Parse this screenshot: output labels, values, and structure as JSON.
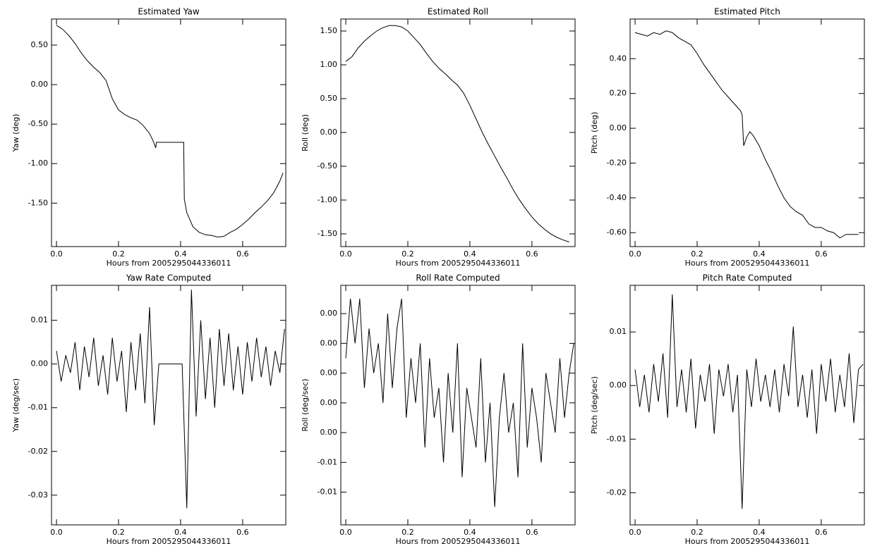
{
  "chart_data": [
    {
      "type": "line",
      "title": "Estimated Yaw",
      "xlabel": "Hours from 2005295044336011",
      "ylabel": "Yaw (deg)",
      "color": "#000000",
      "x": [
        0,
        0.02,
        0.04,
        0.06,
        0.08,
        0.1,
        0.12,
        0.14,
        0.16,
        0.18,
        0.2,
        0.22,
        0.24,
        0.26,
        0.28,
        0.3,
        0.31,
        0.32,
        0.322,
        0.41,
        0.412,
        0.42,
        0.44,
        0.46,
        0.48,
        0.5,
        0.52,
        0.54,
        0.56,
        0.58,
        0.6,
        0.62,
        0.64,
        0.66,
        0.68,
        0.7,
        0.72,
        0.73
      ],
      "values": [
        0.75,
        0.7,
        0.62,
        0.52,
        0.4,
        0.3,
        0.22,
        0.15,
        0.05,
        -0.18,
        -0.32,
        -0.38,
        -0.42,
        -0.45,
        -0.52,
        -0.62,
        -0.7,
        -0.8,
        -0.73,
        -0.73,
        -1.45,
        -1.62,
        -1.8,
        -1.87,
        -1.9,
        -1.91,
        -1.93,
        -1.92,
        -1.87,
        -1.83,
        -1.77,
        -1.7,
        -1.62,
        -1.55,
        -1.47,
        -1.37,
        -1.22,
        -1.12
      ],
      "xlim": [
        -0.016,
        0.739
      ],
      "ylim": [
        -2.05,
        0.83
      ],
      "xticks": [
        {
          "value": 0,
          "label": "0.0"
        },
        0.2,
        0.4,
        0.6
      ],
      "yticks": [
        {
          "value": 0.5,
          "label": "0.50"
        },
        {
          "value": 0,
          "label": "0.00"
        },
        {
          "value": -0.5,
          "label": "-0.50"
        },
        {
          "value": -1,
          "label": "-1.00"
        },
        {
          "value": -1.5,
          "label": "-1.50"
        }
      ]
    },
    {
      "type": "line",
      "title": "Estimated Roll",
      "xlabel": "Hours from 2005295044336011",
      "ylabel": "Roll (deg)",
      "color": "#000000",
      "x": [
        0,
        0.02,
        0.04,
        0.06,
        0.08,
        0.1,
        0.12,
        0.14,
        0.16,
        0.18,
        0.2,
        0.22,
        0.24,
        0.26,
        0.28,
        0.3,
        0.32,
        0.34,
        0.36,
        0.38,
        0.4,
        0.42,
        0.44,
        0.46,
        0.48,
        0.5,
        0.52,
        0.54,
        0.56,
        0.58,
        0.6,
        0.62,
        0.64,
        0.66,
        0.68,
        0.7,
        0.72
      ],
      "values": [
        1.05,
        1.12,
        1.25,
        1.35,
        1.43,
        1.5,
        1.55,
        1.58,
        1.58,
        1.56,
        1.5,
        1.4,
        1.3,
        1.17,
        1.05,
        0.95,
        0.87,
        0.78,
        0.7,
        0.58,
        0.4,
        0.2,
        0.0,
        -0.18,
        -0.35,
        -0.52,
        -0.68,
        -0.85,
        -1.0,
        -1.13,
        -1.25,
        -1.35,
        -1.43,
        -1.5,
        -1.55,
        -1.59,
        -1.62
      ],
      "xlim": [
        -0.016,
        0.739
      ],
      "ylim": [
        -1.688,
        1.677
      ],
      "xticks": [
        {
          "value": 0,
          "label": "0.0"
        },
        0.2,
        0.4,
        0.6
      ],
      "yticks": [
        {
          "value": 1.5,
          "label": "1.50"
        },
        {
          "value": 1,
          "label": "1.00"
        },
        {
          "value": 0.5,
          "label": "0.50"
        },
        {
          "value": 0,
          "label": "0.00"
        },
        {
          "value": -0.5,
          "label": "-0.50"
        },
        {
          "value": -1,
          "label": "-1.00"
        },
        {
          "value": -1.5,
          "label": "-1.50"
        }
      ]
    },
    {
      "type": "line",
      "title": "Estimated Pitch",
      "xlabel": "Hours from 2005295044336011",
      "ylabel": "Pitch (deg)",
      "color": "#000000",
      "x": [
        0,
        0.02,
        0.04,
        0.06,
        0.08,
        0.1,
        0.12,
        0.14,
        0.16,
        0.18,
        0.2,
        0.22,
        0.24,
        0.26,
        0.28,
        0.3,
        0.32,
        0.34,
        0.345,
        0.35,
        0.36,
        0.37,
        0.38,
        0.4,
        0.42,
        0.44,
        0.46,
        0.48,
        0.5,
        0.52,
        0.54,
        0.56,
        0.58,
        0.6,
        0.62,
        0.64,
        0.66,
        0.68,
        0.7,
        0.72
      ],
      "values": [
        0.55,
        0.54,
        0.53,
        0.55,
        0.54,
        0.56,
        0.55,
        0.52,
        0.5,
        0.48,
        0.43,
        0.37,
        0.32,
        0.27,
        0.22,
        0.18,
        0.14,
        0.1,
        0.08,
        -0.1,
        -0.05,
        -0.02,
        -0.04,
        -0.1,
        -0.18,
        -0.25,
        -0.33,
        -0.4,
        -0.45,
        -0.48,
        -0.5,
        -0.55,
        -0.57,
        -0.57,
        -0.59,
        -0.6,
        -0.63,
        -0.61,
        -0.61,
        -0.61
      ],
      "xlim": [
        -0.016,
        0.739
      ],
      "ylim": [
        -0.68,
        0.628
      ],
      "xticks": [
        {
          "value": 0,
          "label": "0.0"
        },
        0.2,
        0.4,
        0.6
      ],
      "yticks": [
        {
          "value": 0.4,
          "label": "0.40"
        },
        {
          "value": 0.2,
          "label": "0.20"
        },
        {
          "value": 0,
          "label": "0.00"
        },
        {
          "value": -0.2,
          "label": "-0.20"
        },
        {
          "value": -0.4,
          "label": "-0.40"
        },
        {
          "value": -0.6,
          "label": "-0.60"
        }
      ]
    },
    {
      "type": "line",
      "title": "Yaw Rate Computed",
      "xlabel": "Hours from 2005295044336011",
      "ylabel": "Yaw (deg/sec)",
      "color": "#000000",
      "x": [
        0,
        0.015,
        0.03,
        0.045,
        0.06,
        0.075,
        0.09,
        0.105,
        0.12,
        0.135,
        0.15,
        0.165,
        0.18,
        0.195,
        0.21,
        0.225,
        0.24,
        0.255,
        0.27,
        0.285,
        0.3,
        0.315,
        0.33,
        0.345,
        0.36,
        0.375,
        0.39,
        0.405,
        0.42,
        0.435,
        0.45,
        0.465,
        0.48,
        0.495,
        0.51,
        0.525,
        0.54,
        0.555,
        0.57,
        0.585,
        0.6,
        0.615,
        0.63,
        0.645,
        0.66,
        0.675,
        0.69,
        0.705,
        0.72,
        0.735
      ],
      "values": [
        0.003,
        -0.004,
        0.002,
        -0.002,
        0.005,
        -0.006,
        0.004,
        -0.003,
        0.006,
        -0.005,
        0.002,
        -0.007,
        0.006,
        -0.004,
        0.003,
        -0.011,
        0.005,
        -0.006,
        0.007,
        -0.009,
        0.013,
        -0.014,
        0,
        0,
        0,
        0,
        0,
        0,
        -0.033,
        0.017,
        -0.012,
        0.01,
        -0.008,
        0.006,
        -0.01,
        0.008,
        -0.005,
        0.007,
        -0.006,
        0.004,
        -0.007,
        0.005,
        -0.004,
        0.006,
        -0.003,
        0.004,
        -0.005,
        0.003,
        -0.002,
        0.008
      ],
      "xlim": [
        -0.016,
        0.739
      ],
      "ylim": [
        -0.0368,
        0.018
      ],
      "xticks": [
        {
          "value": 0,
          "label": "0.0"
        },
        0.2,
        0.4,
        0.6
      ],
      "yticks": [
        0.01,
        {
          "value": 0,
          "label": "0.00"
        },
        -0.01,
        -0.02,
        -0.03
      ]
    },
    {
      "type": "line",
      "title": "Roll Rate Computed",
      "xlabel": "Hours from 2005295044336011",
      "ylabel": "Roll (deg/sec)",
      "color": "#000000",
      "x": [
        0,
        0.015,
        0.03,
        0.045,
        0.06,
        0.075,
        0.09,
        0.105,
        0.12,
        0.135,
        0.15,
        0.165,
        0.18,
        0.195,
        0.21,
        0.225,
        0.24,
        0.255,
        0.27,
        0.285,
        0.3,
        0.315,
        0.33,
        0.345,
        0.36,
        0.375,
        0.39,
        0.405,
        0.42,
        0.435,
        0.45,
        0.465,
        0.48,
        0.495,
        0.51,
        0.525,
        0.54,
        0.555,
        0.57,
        0.585,
        0.6,
        0.615,
        0.63,
        0.645,
        0.66,
        0.675,
        0.69,
        0.705,
        0.72,
        0.735
      ],
      "values": [
        0.001,
        0.005,
        0.002,
        0.005,
        -0.001,
        0.003,
        0,
        0.002,
        -0.002,
        0.004,
        -0.001,
        0.003,
        0.005,
        -0.003,
        0.001,
        -0.002,
        0.002,
        -0.005,
        0.001,
        -0.003,
        -0.001,
        -0.006,
        0,
        -0.004,
        0.002,
        -0.007,
        -0.001,
        -0.003,
        -0.005,
        0.001,
        -0.006,
        -0.002,
        -0.009,
        -0.003,
        0,
        -0.004,
        -0.002,
        -0.007,
        0.002,
        -0.005,
        -0.001,
        -0.003,
        -0.006,
        0,
        -0.002,
        -0.004,
        0.001,
        -0.003,
        0,
        0.002
      ],
      "xlim": [
        -0.016,
        0.739
      ],
      "ylim": [
        -0.0102,
        0.0059
      ],
      "xticks": [
        {
          "value": 0,
          "label": "0.0"
        },
        0.2,
        0.4,
        0.6
      ],
      "yticks": [
        {
          "value": 0.004,
          "label": "0.00"
        },
        {
          "value": 0.002,
          "label": "0.00"
        },
        {
          "value": 0,
          "label": "0.00"
        },
        {
          "value": -0.002,
          "label": "0.00"
        },
        {
          "value": -0.004,
          "label": "0.00"
        },
        {
          "value": -0.006,
          "label": "-0.01"
        },
        {
          "value": -0.008,
          "label": "-0.01"
        }
      ]
    },
    {
      "type": "line",
      "title": "Pitch Rate Computed",
      "xlabel": "Hours from 2005295044336011",
      "ylabel": "Pitch (deg/sec)",
      "color": "#000000",
      "x": [
        0,
        0.015,
        0.03,
        0.045,
        0.06,
        0.075,
        0.09,
        0.105,
        0.12,
        0.135,
        0.15,
        0.165,
        0.18,
        0.195,
        0.21,
        0.225,
        0.24,
        0.255,
        0.27,
        0.285,
        0.3,
        0.315,
        0.33,
        0.345,
        0.36,
        0.375,
        0.39,
        0.405,
        0.42,
        0.435,
        0.45,
        0.465,
        0.48,
        0.495,
        0.51,
        0.525,
        0.54,
        0.555,
        0.57,
        0.585,
        0.6,
        0.615,
        0.63,
        0.645,
        0.66,
        0.675,
        0.69,
        0.705,
        0.72,
        0.735
      ],
      "values": [
        0.003,
        -0.004,
        0.002,
        -0.005,
        0.004,
        -0.003,
        0.006,
        -0.006,
        0.017,
        -0.004,
        0.003,
        -0.005,
        0.005,
        -0.008,
        0.002,
        -0.003,
        0.004,
        -0.009,
        0.003,
        -0.002,
        0.004,
        -0.005,
        0.002,
        -0.023,
        0.003,
        -0.004,
        0.005,
        -0.003,
        0.002,
        -0.004,
        0.003,
        -0.005,
        0.004,
        -0.002,
        0.011,
        -0.004,
        0.002,
        -0.006,
        0.003,
        -0.009,
        0.004,
        -0.003,
        0.005,
        -0.005,
        0.002,
        -0.004,
        0.006,
        -0.007,
        0.003,
        0.004
      ],
      "xlim": [
        -0.016,
        0.739
      ],
      "ylim": [
        -0.026,
        0.0187
      ],
      "xticks": [
        {
          "value": 0,
          "label": "0.0"
        },
        0.2,
        0.4,
        0.6
      ],
      "yticks": [
        0.01,
        {
          "value": 0,
          "label": "0.00"
        },
        -0.01,
        -0.02
      ]
    }
  ]
}
